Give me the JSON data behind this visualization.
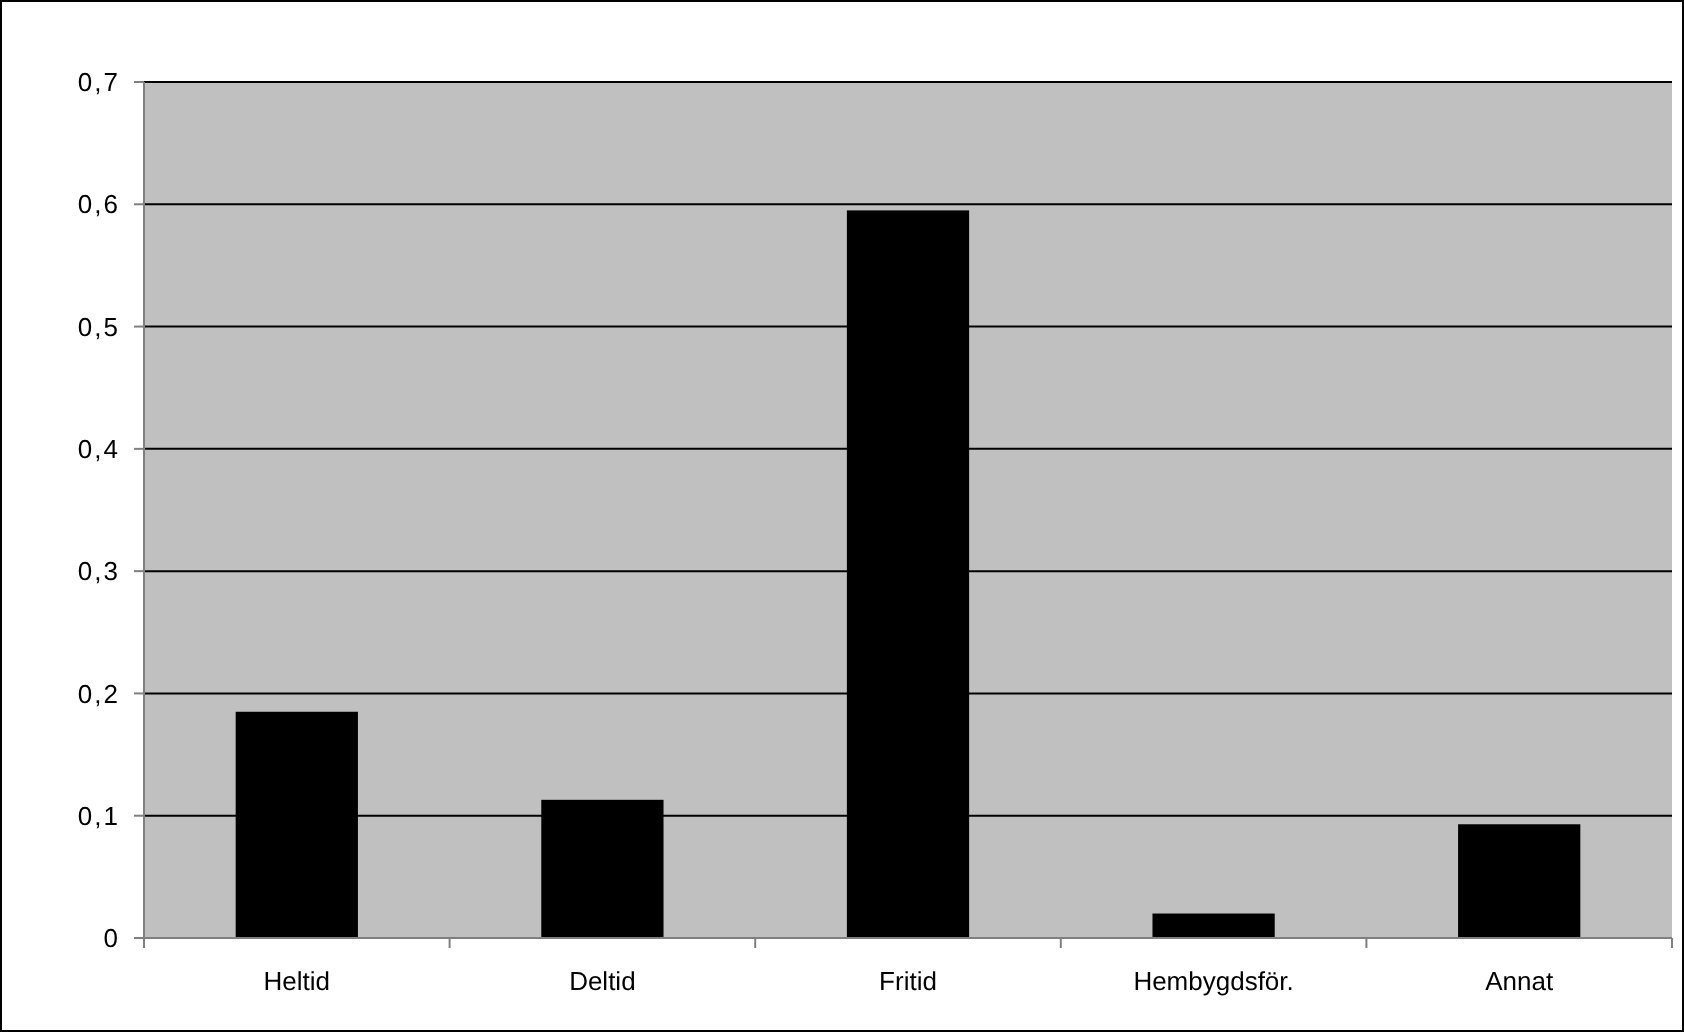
{
  "chart_data": {
    "type": "bar",
    "categories": [
      "Heltid",
      "Deltid",
      "Fritid",
      "Hembygdsför.",
      "Annat"
    ],
    "values": [
      0.185,
      0.113,
      0.595,
      0.02,
      0.093
    ],
    "color": "#000000",
    "ylim": [
      0,
      0.7
    ],
    "yticks": [
      0,
      {
        "value": 0.1,
        "label": "0,1"
      },
      {
        "value": 0.2,
        "label": "0,2"
      },
      {
        "value": 0.3,
        "label": "0,3"
      },
      {
        "value": 0.4,
        "label": "0,4"
      },
      {
        "value": 0.5,
        "label": "0,5"
      },
      {
        "value": 0.6,
        "label": "0,6"
      },
      {
        "value": 0.7,
        "label": "0,7"
      }
    ],
    "grid": "y"
  }
}
